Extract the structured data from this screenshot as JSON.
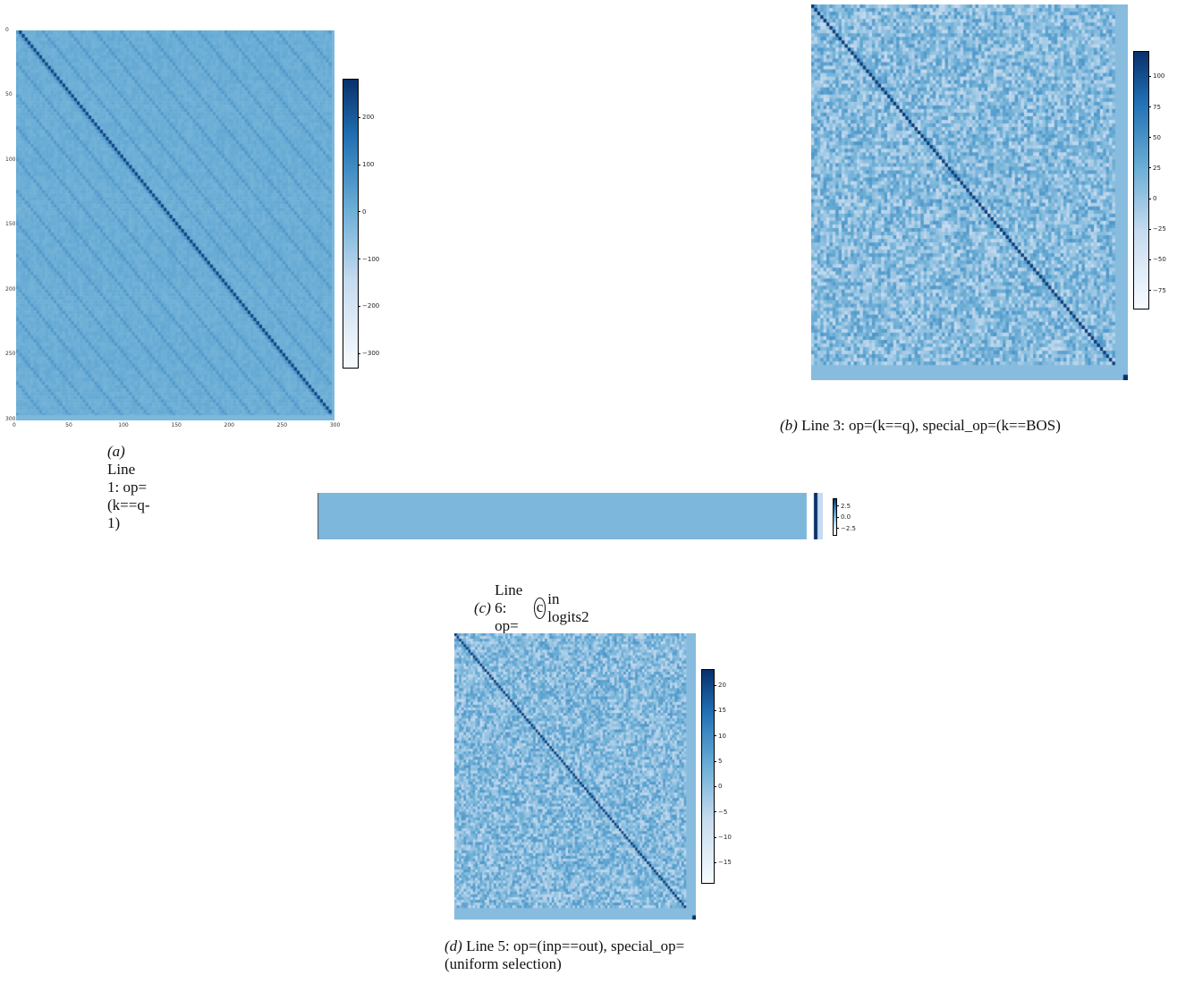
{
  "chart_data": [
    {
      "id": "a",
      "type": "heatmap",
      "caption_tag": "(a)",
      "caption_text": "Line 1: op=(k==q-1)",
      "x_ticks": [
        "0",
        "50",
        "100",
        "150",
        "200",
        "250",
        "300"
      ],
      "y_ticks": [
        "0",
        "50",
        "100",
        "150",
        "200",
        "250",
        "300"
      ],
      "colorbar_ticks": [
        "200",
        "100",
        "0",
        "−100",
        "−200",
        "−300"
      ],
      "colorbar_range": [
        -330,
        280
      ],
      "matrix_size": 301,
      "pattern": "off-diagonal k==q-1, uniform background",
      "colormap": [
        "#f7fbff",
        "#c6dbef",
        "#6baed6",
        "#2171b5",
        "#08306b"
      ]
    },
    {
      "id": "b",
      "type": "heatmap",
      "caption_tag": "(b)",
      "caption_text": "Line 3: op=(k==q), special_op=(k==BOS)",
      "colorbar_ticks": [
        "100",
        "75",
        "50",
        "25",
        "0",
        "−25",
        "−50",
        "−75"
      ],
      "colorbar_range": [
        -90,
        120
      ],
      "pattern": "diagonal k==q, noisy background, BOS column/row",
      "colormap": [
        "#f7fbff",
        "#c6dbef",
        "#6baed6",
        "#2171b5",
        "#08306b"
      ]
    },
    {
      "id": "c",
      "type": "heatmap",
      "caption_tag": "(c)",
      "caption_text_pre": "Line 6: op=",
      "caption_circle": "c",
      "caption_text_post": "in logits2",
      "colorbar_ticks": [
        "2.5",
        "0.0",
        "−2.5"
      ],
      "colorbar_range": [
        -4,
        4
      ],
      "pattern": "single row, flat value with bright end column",
      "colormap": [
        "#f7fbff",
        "#c6dbef",
        "#6baed6",
        "#2171b5",
        "#08306b"
      ]
    },
    {
      "id": "d",
      "type": "heatmap",
      "caption_tag": "(d)",
      "caption_text": "Line 5: op=(inp==out), special_op=(uniform selection)",
      "colorbar_ticks": [
        "20",
        "15",
        "10",
        "5",
        "0",
        "−5",
        "−10",
        "−15"
      ],
      "colorbar_range": [
        -19,
        23
      ],
      "pattern": "diagonal inp==out, noisy background",
      "colormap": [
        "#f7fbff",
        "#c6dbef",
        "#6baed6",
        "#2171b5",
        "#08306b"
      ]
    }
  ]
}
